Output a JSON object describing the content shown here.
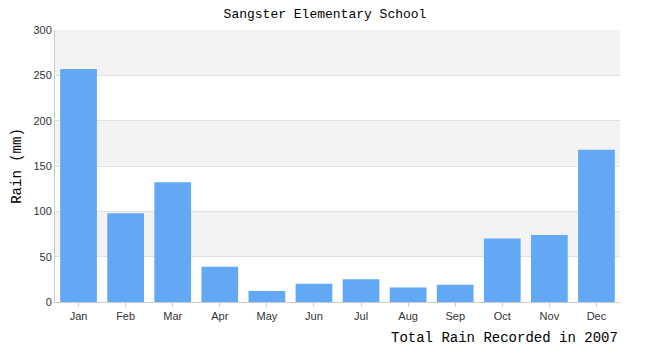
{
  "chart_data": {
    "type": "bar",
    "title": "Sangster Elementary School",
    "ylabel": "Rain (mm)",
    "xlabel": "Total Rain Recorded in 2007",
    "categories": [
      "Jan",
      "Feb",
      "Mar",
      "Apr",
      "May",
      "Jun",
      "Jul",
      "Aug",
      "Sep",
      "Oct",
      "Nov",
      "Dec"
    ],
    "values": [
      257,
      98,
      132,
      39,
      12,
      20,
      25,
      16,
      19,
      70,
      74,
      168
    ],
    "color": "#62a8f5",
    "ylim": [
      0,
      300
    ],
    "yticks": [
      0,
      50,
      100,
      150,
      200,
      250,
      300
    ],
    "grid": true
  }
}
